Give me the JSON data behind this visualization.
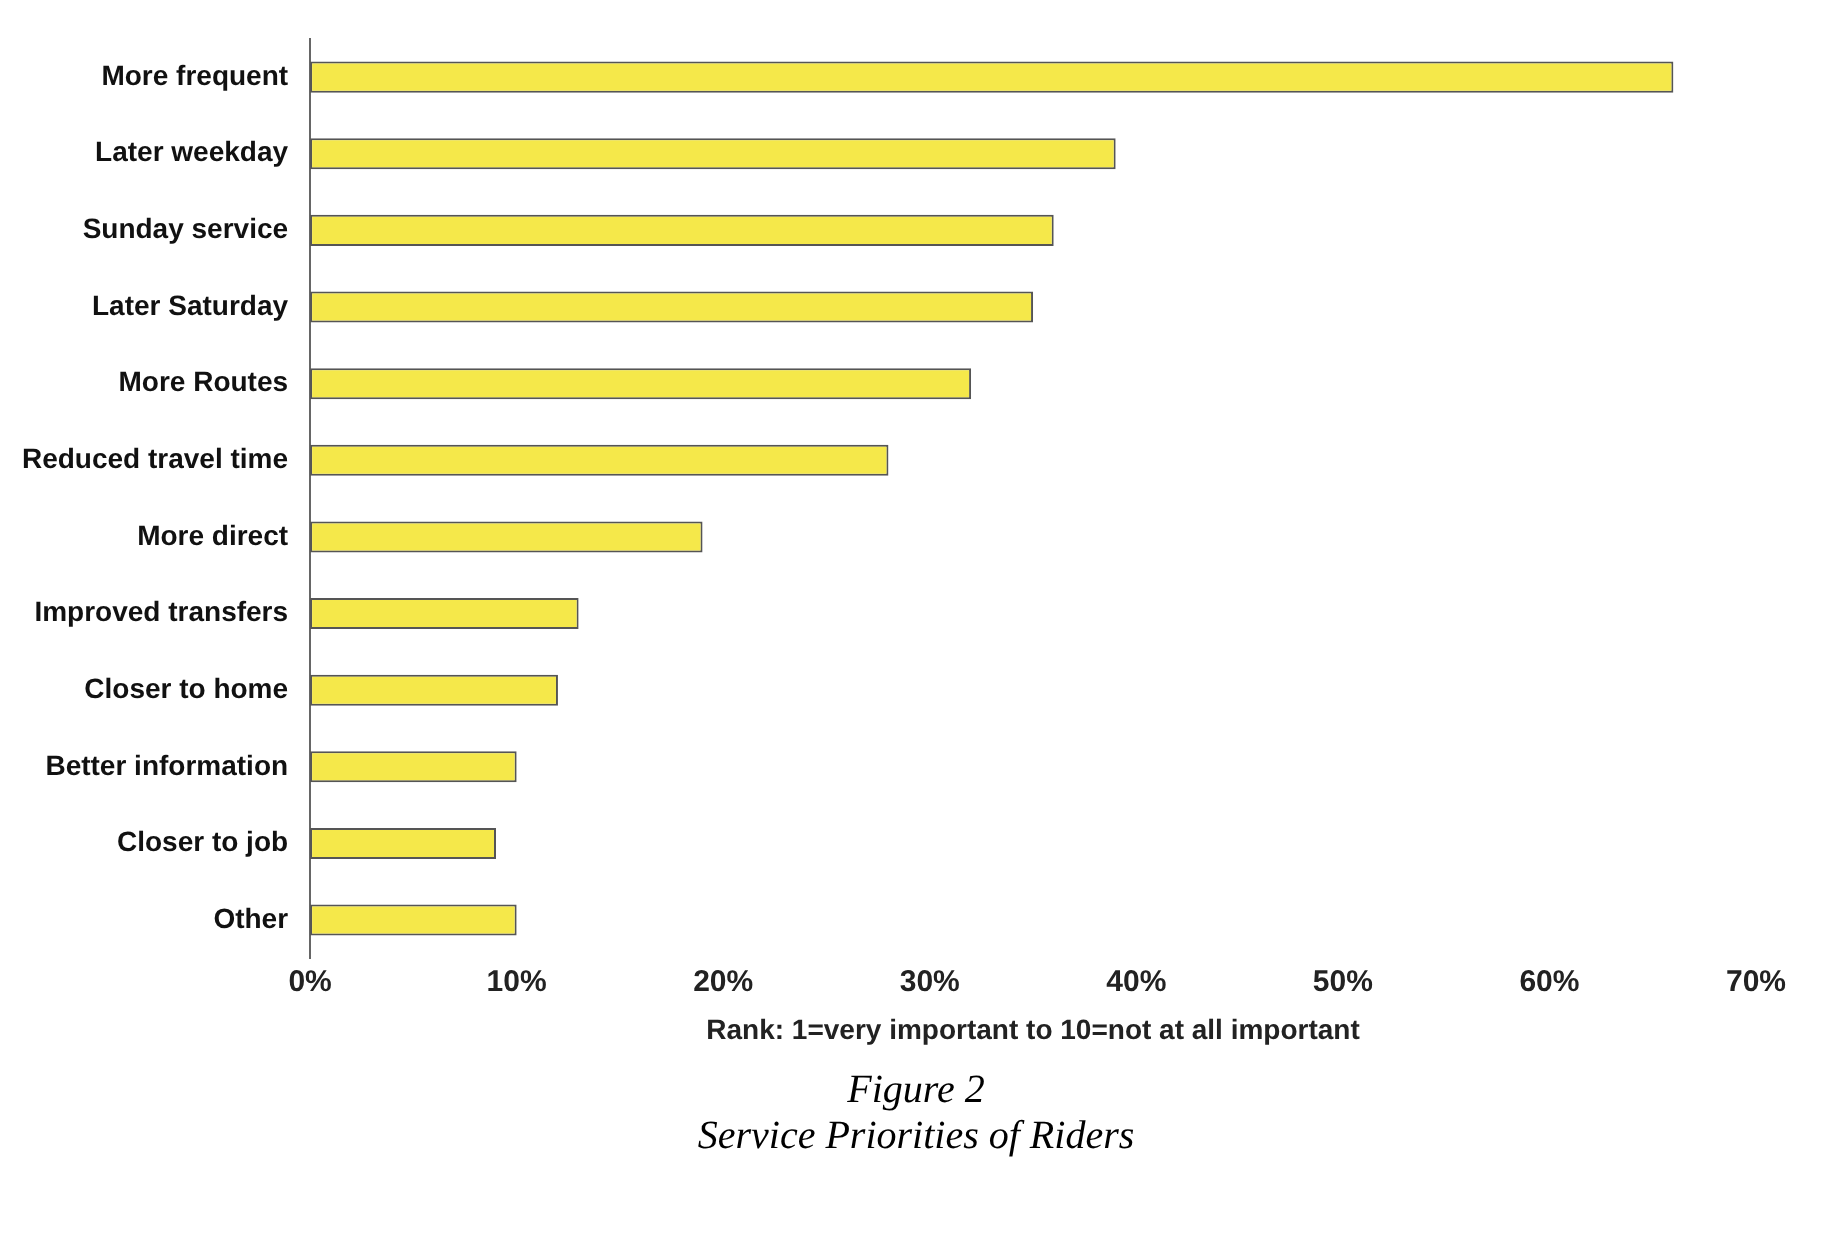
{
  "chart_data": {
    "type": "bar",
    "orientation": "horizontal",
    "title": "Figure 2",
    "subtitle": "Service Priorities of Riders",
    "xlabel": "Rank: 1=very important to 10=not at all important",
    "categories": [
      "More frequent",
      "Later weekday",
      "Sunday service",
      "Later Saturday",
      "More Routes",
      "Reduced travel time",
      "More direct",
      "Improved transfers",
      "Closer to home",
      "Better information",
      "Closer to job",
      "Other"
    ],
    "values": [
      66,
      39,
      36,
      35,
      32,
      28,
      19,
      13,
      12,
      10,
      9,
      10
    ],
    "color": "#f5e84a",
    "xlim": [
      0,
      70
    ],
    "xticks": [
      {
        "value": 0,
        "label": "0%"
      },
      {
        "value": 10,
        "label": "10%"
      },
      {
        "value": 20,
        "label": "20%"
      },
      {
        "value": 30,
        "label": "30%"
      },
      {
        "value": 40,
        "label": "40%"
      },
      {
        "value": 50,
        "label": "50%"
      },
      {
        "value": 60,
        "label": "60%"
      },
      {
        "value": 70,
        "label": "70%"
      }
    ],
    "grid": false,
    "legend": false
  }
}
